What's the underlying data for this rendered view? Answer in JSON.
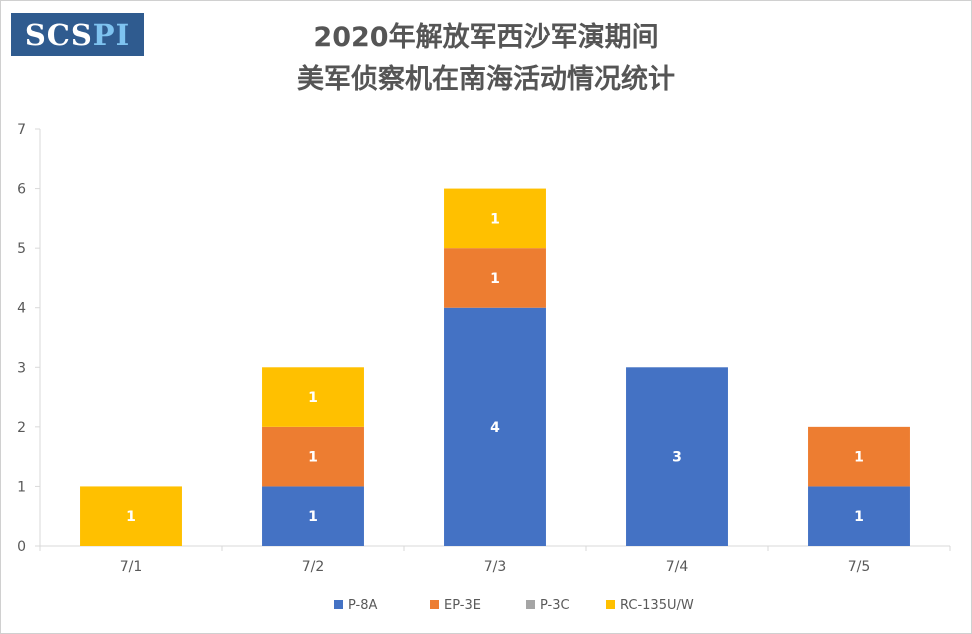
{
  "logo": {
    "part1": "SCS",
    "part2": "PI"
  },
  "chart_data": {
    "type": "bar",
    "stacked": true,
    "title_line1": "2020年解放军西沙军演期间",
    "title_line2": "美军侦察机在南海活动情况统计",
    "xlabel": "",
    "ylabel": "",
    "categories": [
      "7/1",
      "7/2",
      "7/3",
      "7/4",
      "7/5"
    ],
    "ylim": [
      0,
      7
    ],
    "yticks": [
      0,
      1,
      2,
      3,
      4,
      5,
      6,
      7
    ],
    "grid": false,
    "legend_position": "bottom",
    "series": [
      {
        "name": "P-8A",
        "color": "#4472c4",
        "values": [
          0,
          1,
          4,
          3,
          1
        ]
      },
      {
        "name": "EP-3E",
        "color": "#ed7d31",
        "values": [
          0,
          1,
          1,
          0,
          1
        ]
      },
      {
        "name": "P-3C",
        "color": "#a5a5a5",
        "values": [
          0,
          0,
          0,
          0,
          0
        ]
      },
      {
        "name": "RC-135U/W",
        "color": "#ffc000",
        "values": [
          1,
          1,
          1,
          0,
          0
        ]
      }
    ]
  }
}
